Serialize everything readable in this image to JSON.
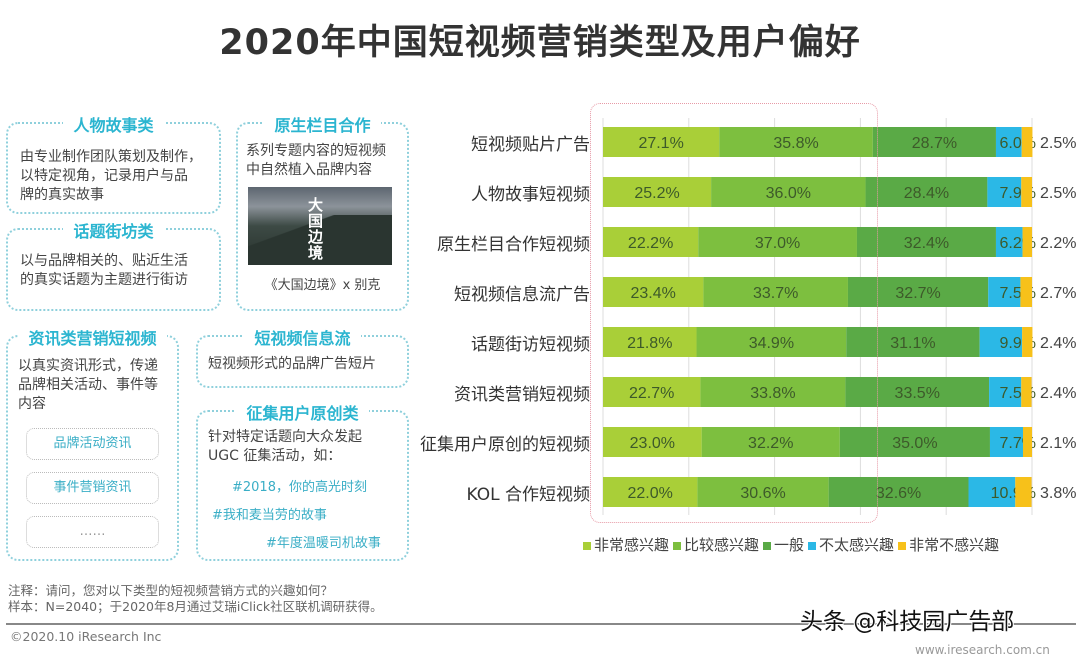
{
  "title": "2020年中国短视频营销类型及用户偏好",
  "panels": {
    "story": {
      "title": "人物故事类",
      "text": [
        "由专业制作团队策划及制作，",
        "以特定视角，记录用户与品",
        "牌的真实故事"
      ]
    },
    "street": {
      "title": "话题街坊类",
      "text": [
        "以与品牌相关的、贴近生活",
        "的真实话题为主题进行街访"
      ]
    },
    "native": {
      "title": "原生栏目合作",
      "text": [
        "系列专题内容的短视频",
        "中自然植入品牌内容"
      ],
      "image_logo": "大国边境",
      "caption": "《大国边境》x 别克"
    },
    "news": {
      "title": "资讯类营销短视频",
      "text": [
        "以真实资讯形式，传递",
        "品牌相关活动、事件等",
        "内容"
      ],
      "items": [
        "品牌活动资讯",
        "事件营销资讯",
        "……"
      ]
    },
    "feed": {
      "title": "短视频信息流",
      "text": [
        "短视频形式的品牌广告短片"
      ]
    },
    "ugc": {
      "title": "征集用户原创类",
      "text": [
        "针对特定话题向大众发起",
        "UGC 征集活动，如："
      ],
      "tags": [
        "#2018，你的高光时刻",
        "#我和麦当劳的故事",
        "#年度温暖司机故事"
      ]
    }
  },
  "chart_data": {
    "type": "bar",
    "orientation": "horizontal-stacked-100",
    "categories": [
      "短视频贴片广告",
      "人物故事短视频",
      "原生栏目合作短视频",
      "短视频信息流广告",
      "话题街访短视频",
      "资讯类营销短视频",
      "征集用户原创的短视频",
      "KOL 合作短视频"
    ],
    "series": [
      {
        "name": "非常感兴趣",
        "color": "#a9cf38",
        "values": [
          27.1,
          25.2,
          22.2,
          23.4,
          21.8,
          22.7,
          23.0,
          22.0
        ]
      },
      {
        "name": "比较感兴趣",
        "color": "#7dbf3f",
        "values": [
          35.8,
          36.0,
          37.0,
          33.7,
          34.9,
          33.8,
          32.2,
          30.6
        ]
      },
      {
        "name": "一般",
        "color": "#5aaa46",
        "values": [
          28.7,
          28.4,
          32.4,
          32.7,
          31.1,
          33.5,
          35.0,
          32.6
        ]
      },
      {
        "name": "不太感兴趣",
        "color": "#2bb8e6",
        "values": [
          6.0,
          7.9,
          6.2,
          7.5,
          9.9,
          7.5,
          7.7,
          10.9
        ]
      },
      {
        "name": "非常不感兴趣",
        "color": "#f7c11a",
        "values": [
          2.5,
          2.5,
          2.2,
          2.7,
          2.4,
          2.4,
          2.1,
          3.8
        ]
      }
    ],
    "value_format": "%",
    "xlim": [
      0,
      100
    ],
    "grid": true,
    "legend": "bottom"
  },
  "notes": [
    "注释：请问，您对以下类型的短视频营销方式的兴趣如何？",
    "样本：N=2040；于2020年8月通过艾瑞iClick社区联机调研获得。"
  ],
  "copyright": "©2020.10 iResearch Inc",
  "site": "www.iresearch.com.cn",
  "watermark": "头条 @科技园广告部"
}
